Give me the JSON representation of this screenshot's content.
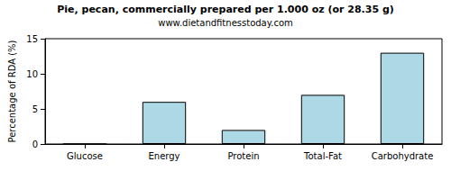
{
  "chart_data": {
    "type": "bar",
    "title": "Pie, pecan, commercially prepared per 1.000 oz (or 28.35 g)",
    "subtitle": "www.dietandfitnesstoday.com",
    "y_label": "Percentage of RDA (%)",
    "categories": [
      "Glucose",
      "Energy",
      "Protein",
      "Total-Fat",
      "Carbohydrate"
    ],
    "values": [
      0,
      6,
      2,
      7,
      13
    ],
    "color": "#add8e6",
    "ylim": [
      0,
      15
    ],
    "yticks": [
      0,
      5,
      10,
      15
    ],
    "grid": false
  }
}
